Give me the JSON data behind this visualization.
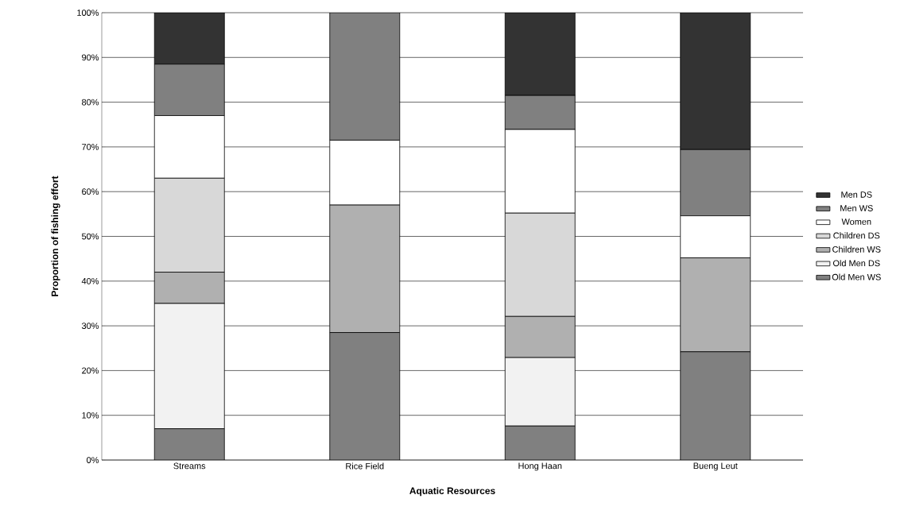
{
  "chart_data": {
    "type": "bar",
    "stacked": true,
    "xlabel": "Aquatic Resources",
    "ylabel": "Proportion of fishing effort",
    "categories": [
      "Streams",
      "Rice Field",
      "Hong Haan",
      "Bueng Leut"
    ],
    "series": [
      {
        "name": "Old Men WS",
        "color": "#808080",
        "values": [
          7,
          28.5,
          7.6,
          24.2
        ]
      },
      {
        "name": "Old Men DS",
        "color": "#f2f2f2",
        "values": [
          28,
          0,
          15.3,
          0
        ]
      },
      {
        "name": "Children WS",
        "color": "#b0b0b0",
        "values": [
          7,
          28.5,
          9.2,
          21
        ]
      },
      {
        "name": "Children DS",
        "color": "#d8d8d8",
        "values": [
          21,
          0,
          23.1,
          0
        ]
      },
      {
        "name": "Women",
        "color": "#ffffff",
        "values": [
          14,
          14.5,
          18.7,
          9.4
        ]
      },
      {
        "name": "Men WS",
        "color": "#808080",
        "values": [
          11.5,
          28.5,
          7.6,
          14.8
        ]
      },
      {
        "name": "Men DS",
        "color": "#333333",
        "values": [
          11.5,
          0,
          18.5,
          30.6
        ]
      }
    ],
    "ylim": [
      0,
      100
    ],
    "yticks": [
      {
        "value": 0,
        "label": "0%"
      },
      {
        "value": 10,
        "label": "10%"
      },
      {
        "value": 20,
        "label": "20%"
      },
      {
        "value": 30,
        "label": "30%"
      },
      {
        "value": 40,
        "label": "40%"
      },
      {
        "value": 50,
        "label": "50%"
      },
      {
        "value": 60,
        "label": "60%"
      },
      {
        "value": 70,
        "label": "70%"
      },
      {
        "value": 80,
        "label": "80%"
      },
      {
        "value": 90,
        "label": "90%"
      },
      {
        "value": 100,
        "label": "100%"
      }
    ],
    "grid": "y",
    "legend": "right"
  }
}
